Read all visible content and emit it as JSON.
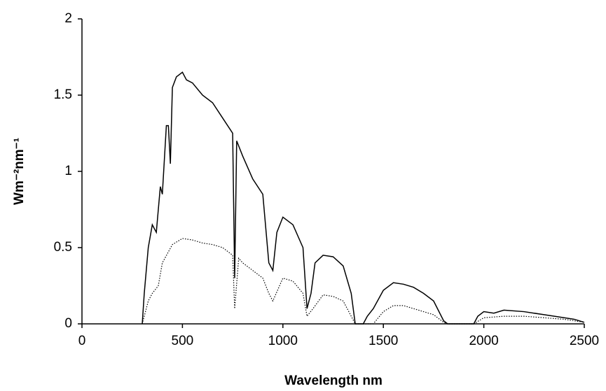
{
  "chart_data": {
    "type": "line",
    "xlabel": "Wavelength nm",
    "ylabel": "Wm⁻²nm⁻¹",
    "xlim": [
      0,
      2500
    ],
    "xticks": [
      0,
      500,
      1000,
      1500,
      2000,
      2500
    ],
    "ylim": [
      0,
      2
    ],
    "yticks": [
      0,
      0.5,
      1,
      1.5,
      2
    ],
    "grid": false,
    "series": [
      {
        "color": "#000000",
        "dash": "solid",
        "x": [
          300,
          310,
          330,
          350,
          370,
          390,
          400,
          420,
          430,
          440,
          450,
          470,
          500,
          520,
          550,
          600,
          650,
          700,
          750,
          760,
          770,
          800,
          850,
          900,
          930,
          950,
          970,
          1000,
          1050,
          1100,
          1120,
          1140,
          1160,
          1200,
          1250,
          1300,
          1340,
          1360,
          1400,
          1420,
          1450,
          1500,
          1550,
          1600,
          1650,
          1700,
          1750,
          1800,
          1820,
          1950,
          1970,
          2000,
          2050,
          2100,
          2200,
          2300,
          2400,
          2450,
          2500
        ],
        "values": [
          0,
          0.2,
          0.5,
          0.65,
          0.6,
          0.9,
          0.85,
          1.3,
          1.3,
          1.05,
          1.55,
          1.62,
          1.65,
          1.6,
          1.58,
          1.5,
          1.45,
          1.35,
          1.25,
          0.3,
          1.2,
          1.1,
          0.95,
          0.85,
          0.4,
          0.35,
          0.6,
          0.7,
          0.65,
          0.5,
          0.1,
          0.2,
          0.4,
          0.45,
          0.44,
          0.38,
          0.2,
          0,
          0,
          0.05,
          0.1,
          0.22,
          0.27,
          0.26,
          0.24,
          0.2,
          0.15,
          0.02,
          0,
          0,
          0.05,
          0.08,
          0.07,
          0.09,
          0.08,
          0.06,
          0.04,
          0.03,
          0.01
        ]
      },
      {
        "color": "#000000",
        "dash": "dotted",
        "x": [
          300,
          330,
          350,
          380,
          400,
          450,
          500,
          550,
          600,
          650,
          700,
          750,
          760,
          780,
          800,
          850,
          900,
          930,
          950,
          1000,
          1050,
          1100,
          1120,
          1150,
          1200,
          1250,
          1300,
          1340,
          1360,
          1450,
          1500,
          1550,
          1600,
          1650,
          1700,
          1750,
          1800,
          1820,
          1950,
          2000,
          2100,
          2200,
          2300,
          2400,
          2500
        ],
        "values": [
          0,
          0.15,
          0.2,
          0.25,
          0.4,
          0.52,
          0.56,
          0.55,
          0.53,
          0.52,
          0.5,
          0.45,
          0.1,
          0.43,
          0.4,
          0.35,
          0.3,
          0.2,
          0.15,
          0.3,
          0.28,
          0.2,
          0.05,
          0.1,
          0.19,
          0.18,
          0.15,
          0.05,
          0,
          0,
          0.08,
          0.12,
          0.12,
          0.1,
          0.08,
          0.06,
          0.01,
          0,
          0,
          0.04,
          0.05,
          0.05,
          0.04,
          0.03,
          0.01
        ]
      }
    ]
  }
}
